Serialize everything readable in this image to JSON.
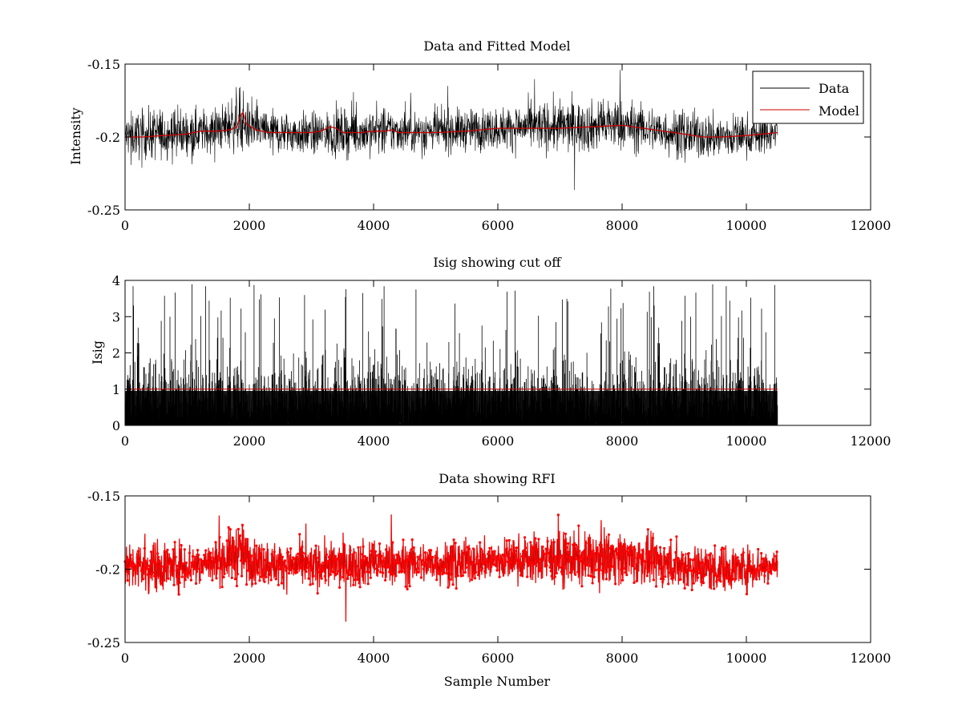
{
  "chart_data": [
    {
      "type": "line",
      "title": "Data and Fitted Model",
      "xlabel": "",
      "ylabel": "Intensity",
      "xlim": [
        0,
        12000
      ],
      "ylim": [
        -0.25,
        -0.15
      ],
      "y_reversed": true,
      "xticks": [
        0,
        2000,
        4000,
        6000,
        8000,
        10000,
        12000
      ],
      "yticks": [
        -0.15,
        -0.2,
        -0.25
      ],
      "xtick_labels": [
        "0",
        "2000",
        "4000",
        "6000",
        "8000",
        "10000",
        "12000"
      ],
      "ytick_labels": [
        "-0.15",
        "-0.2",
        "-0.25"
      ],
      "legend": {
        "position": "top-right",
        "entries": [
          {
            "label": "Data",
            "color": "#000000"
          },
          {
            "label": "Model",
            "color": "#cc0000"
          }
        ]
      },
      "series": [
        {
          "name": "Data",
          "color": "#000000",
          "style": "noise",
          "sample_count": 10500,
          "envelope_x": [
            0,
            500,
            1000,
            1500,
            1850,
            1900,
            2000,
            2500,
            3000,
            3500,
            4000,
            4500,
            5000,
            5500,
            6000,
            6500,
            7000,
            7500,
            7800,
            8000,
            8500,
            9000,
            9500,
            10000,
            10500
          ],
          "envelope_center": [
            -0.199,
            -0.198,
            -0.197,
            -0.195,
            -0.188,
            -0.19,
            -0.194,
            -0.197,
            -0.198,
            -0.197,
            -0.196,
            -0.196,
            -0.196,
            -0.195,
            -0.194,
            -0.193,
            -0.193,
            -0.193,
            -0.191,
            -0.192,
            -0.195,
            -0.198,
            -0.2,
            -0.199,
            -0.197
          ],
          "envelope_spread": [
            0.02,
            0.025,
            0.022,
            0.02,
            0.03,
            0.028,
            0.022,
            0.02,
            0.02,
            0.022,
            0.022,
            0.02,
            0.02,
            0.02,
            0.02,
            0.022,
            0.025,
            0.024,
            0.026,
            0.024,
            0.022,
            0.022,
            0.022,
            0.02,
            0.018
          ]
        },
        {
          "name": "Model",
          "color": "#cc0000",
          "style": "line",
          "x": [
            0,
            300,
            600,
            1000,
            1200,
            1500,
            1700,
            1800,
            1850,
            1900,
            1950,
            2100,
            2300,
            2600,
            3000,
            3150,
            3200,
            3300,
            3400,
            3500,
            3800,
            4000,
            4200,
            4300,
            4400,
            4500,
            5000,
            5500,
            6000,
            6500,
            7000,
            7500,
            8000,
            8500,
            9000,
            9300,
            9600,
            10000,
            10500
          ],
          "y": [
            -0.2,
            -0.2,
            -0.199,
            -0.198,
            -0.196,
            -0.196,
            -0.195,
            -0.193,
            -0.186,
            -0.183,
            -0.191,
            -0.195,
            -0.197,
            -0.197,
            -0.197,
            -0.196,
            -0.195,
            -0.193,
            -0.194,
            -0.197,
            -0.197,
            -0.196,
            -0.196,
            -0.195,
            -0.197,
            -0.197,
            -0.197,
            -0.196,
            -0.194,
            -0.194,
            -0.194,
            -0.193,
            -0.192,
            -0.195,
            -0.198,
            -0.2,
            -0.2,
            -0.199,
            -0.197
          ]
        }
      ]
    },
    {
      "type": "line",
      "title": "Isig showing cut off",
      "xlabel": "",
      "ylabel": "Isig",
      "xlim": [
        0,
        12000
      ],
      "ylim": [
        0,
        4
      ],
      "y_reversed": false,
      "xticks": [
        0,
        2000,
        4000,
        6000,
        8000,
        10000,
        12000
      ],
      "yticks": [
        0,
        1,
        2,
        3,
        4
      ],
      "xtick_labels": [
        "0",
        "2000",
        "4000",
        "6000",
        "8000",
        "10000",
        "12000"
      ],
      "ytick_labels": [
        "0",
        "1",
        "2",
        "3",
        "4"
      ],
      "series": [
        {
          "color": "#000000",
          "style": "isig",
          "sample_count": 10500,
          "max": 3.9
        },
        {
          "color": "#cc0000",
          "style": "hline",
          "x": [
            0,
            10500
          ],
          "y": [
            1,
            1
          ]
        }
      ]
    },
    {
      "type": "line",
      "title": "Data showing RFI",
      "xlabel": "Sample Number",
      "ylabel": "",
      "xlim": [
        0,
        12000
      ],
      "ylim": [
        -0.25,
        -0.15
      ],
      "y_reversed": true,
      "xticks": [
        0,
        2000,
        4000,
        6000,
        8000,
        10000,
        12000
      ],
      "yticks": [
        -0.15,
        -0.2,
        -0.25
      ],
      "xtick_labels": [
        "0",
        "2000",
        "4000",
        "6000",
        "8000",
        "10000",
        "12000"
      ],
      "ytick_labels": [
        "-0.15",
        "-0.2",
        "-0.25"
      ],
      "series": [
        {
          "color": "#000000",
          "marker_color": "#ff0000",
          "style": "noise-markers",
          "sample_count": 10500,
          "envelope_x": [
            0,
            500,
            1000,
            1500,
            1850,
            1900,
            2000,
            2500,
            3000,
            3500,
            4000,
            4500,
            5000,
            5500,
            6000,
            6500,
            7000,
            7500,
            7800,
            8000,
            8500,
            9000,
            9500,
            10000,
            10500
          ],
          "envelope_center": [
            -0.199,
            -0.198,
            -0.197,
            -0.195,
            -0.188,
            -0.19,
            -0.194,
            -0.197,
            -0.198,
            -0.197,
            -0.196,
            -0.196,
            -0.196,
            -0.195,
            -0.194,
            -0.193,
            -0.193,
            -0.193,
            -0.191,
            -0.192,
            -0.195,
            -0.198,
            -0.2,
            -0.199,
            -0.197
          ],
          "envelope_spread": [
            0.02,
            0.025,
            0.022,
            0.02,
            0.03,
            0.028,
            0.022,
            0.02,
            0.02,
            0.022,
            0.022,
            0.02,
            0.02,
            0.02,
            0.02,
            0.022,
            0.025,
            0.024,
            0.026,
            0.024,
            0.022,
            0.022,
            0.022,
            0.02,
            0.018
          ]
        }
      ]
    }
  ]
}
